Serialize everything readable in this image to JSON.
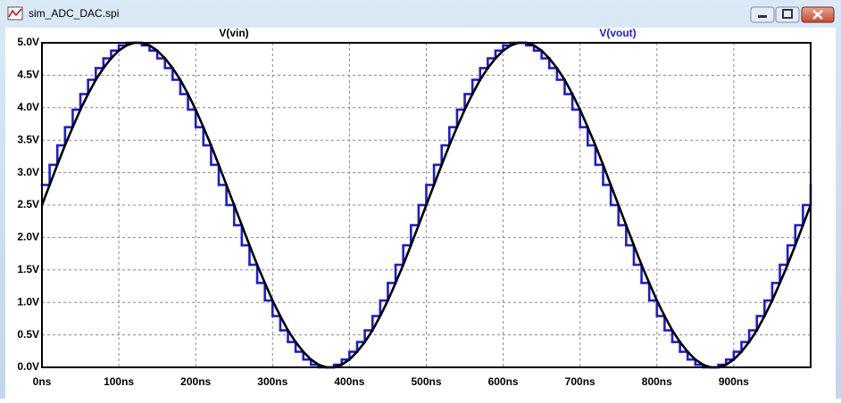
{
  "window": {
    "title": "sim_ADC_DAC.spi"
  },
  "chart_data": {
    "type": "line",
    "x": [
      0,
      10,
      20,
      30,
      40,
      50,
      60,
      70,
      80,
      90,
      100,
      110,
      120,
      130,
      140,
      150,
      160,
      170,
      180,
      190,
      200,
      210,
      220,
      230,
      240,
      250,
      260,
      270,
      280,
      290,
      300,
      310,
      320,
      330,
      340,
      350,
      360,
      370,
      380,
      390,
      400,
      410,
      420,
      430,
      440,
      450,
      460,
      470,
      480,
      490,
      500,
      510,
      520,
      530,
      540,
      550,
      560,
      570,
      580,
      590,
      600,
      610,
      620,
      630,
      640,
      650,
      660,
      670,
      680,
      690,
      700,
      710,
      720,
      730,
      740,
      750,
      760,
      770,
      780,
      790,
      800,
      810,
      820,
      830,
      840,
      850,
      860,
      870,
      880,
      890,
      900,
      910,
      920,
      930,
      940,
      950,
      960,
      970,
      980,
      990,
      1000
    ],
    "series": [
      {
        "name": "V(vin)",
        "color": "#000000",
        "values": [
          2.5,
          2.81,
          3.12,
          3.42,
          3.7,
          3.97,
          4.21,
          4.43,
          4.61,
          4.76,
          4.88,
          4.96,
          5,
          5,
          4.96,
          4.88,
          4.76,
          4.61,
          4.43,
          4.21,
          3.97,
          3.7,
          3.42,
          3.12,
          2.81,
          2.5,
          2.19,
          1.88,
          1.58,
          1.3,
          1.03,
          0.79,
          0.57,
          0.39,
          0.24,
          0.12,
          0.04,
          0,
          0,
          0.04,
          0.12,
          0.24,
          0.39,
          0.57,
          0.79,
          1.03,
          1.3,
          1.58,
          1.88,
          2.19,
          2.5,
          2.81,
          3.12,
          3.42,
          3.7,
          3.97,
          4.21,
          4.43,
          4.61,
          4.76,
          4.88,
          4.96,
          5,
          5,
          4.96,
          4.88,
          4.76,
          4.61,
          4.43,
          4.21,
          3.97,
          3.7,
          3.42,
          3.12,
          2.81,
          2.5,
          2.19,
          1.88,
          1.58,
          1.3,
          1.03,
          0.79,
          0.57,
          0.39,
          0.24,
          0.12,
          0.04,
          0,
          0,
          0.04,
          0.12,
          0.24,
          0.39,
          0.57,
          0.79,
          1.03,
          1.3,
          1.58,
          1.88,
          2.19,
          2.5
        ]
      },
      {
        "name": "V(vout)",
        "color": "#1c1cd6",
        "step": true,
        "values": [
          2.81,
          3.12,
          3.42,
          3.7,
          3.97,
          4.21,
          4.43,
          4.61,
          4.76,
          4.88,
          4.96,
          5,
          5,
          4.96,
          4.88,
          4.76,
          4.61,
          4.43,
          4.21,
          3.97,
          3.7,
          3.42,
          3.12,
          2.81,
          2.5,
          2.19,
          1.88,
          1.58,
          1.3,
          1.03,
          0.79,
          0.57,
          0.39,
          0.24,
          0.12,
          0.04,
          0,
          0,
          0.04,
          0.12,
          0.24,
          0.39,
          0.57,
          0.79,
          1.03,
          1.3,
          1.58,
          1.88,
          2.19,
          2.5,
          2.81,
          3.12,
          3.42,
          3.7,
          3.97,
          4.21,
          4.43,
          4.61,
          4.76,
          4.88,
          4.96,
          5,
          5,
          4.96,
          4.88,
          4.76,
          4.61,
          4.43,
          4.21,
          3.97,
          3.7,
          3.42,
          3.12,
          2.81,
          2.5,
          2.19,
          1.88,
          1.58,
          1.3,
          1.03,
          0.79,
          0.57,
          0.39,
          0.24,
          0.12,
          0.04,
          0,
          0,
          0.04,
          0.12,
          0.24,
          0.39,
          0.57,
          0.79,
          1.03,
          1.3,
          1.58,
          1.88,
          2.19,
          2.5,
          2.81
        ]
      }
    ],
    "xlim": [
      0,
      1000
    ],
    "ylim": [
      0,
      5
    ],
    "xticks": [
      {
        "value": 0,
        "label": "0ns"
      },
      {
        "value": 100,
        "label": "100ns"
      },
      {
        "value": 200,
        "label": "200ns"
      },
      {
        "value": 300,
        "label": "300ns"
      },
      {
        "value": 400,
        "label": "400ns"
      },
      {
        "value": 500,
        "label": "500ns"
      },
      {
        "value": 600,
        "label": "600ns"
      },
      {
        "value": 700,
        "label": "700ns"
      },
      {
        "value": 800,
        "label": "800ns"
      },
      {
        "value": 900,
        "label": "900ns"
      }
    ],
    "yticks": [
      {
        "value": 0,
        "label": "0.0V"
      },
      {
        "value": 0.5,
        "label": "0.5V"
      },
      {
        "value": 1,
        "label": "1.0V"
      },
      {
        "value": 1.5,
        "label": "1.5V"
      },
      {
        "value": 2,
        "label": "2.0V"
      },
      {
        "value": 2.5,
        "label": "2.5V"
      },
      {
        "value": 3,
        "label": "3.0V"
      },
      {
        "value": 3.5,
        "label": "3.5V"
      },
      {
        "value": 4,
        "label": "4.0V"
      },
      {
        "value": 4.5,
        "label": "4.5V"
      },
      {
        "value": 5,
        "label": "5.0V"
      }
    ],
    "grid": true
  }
}
